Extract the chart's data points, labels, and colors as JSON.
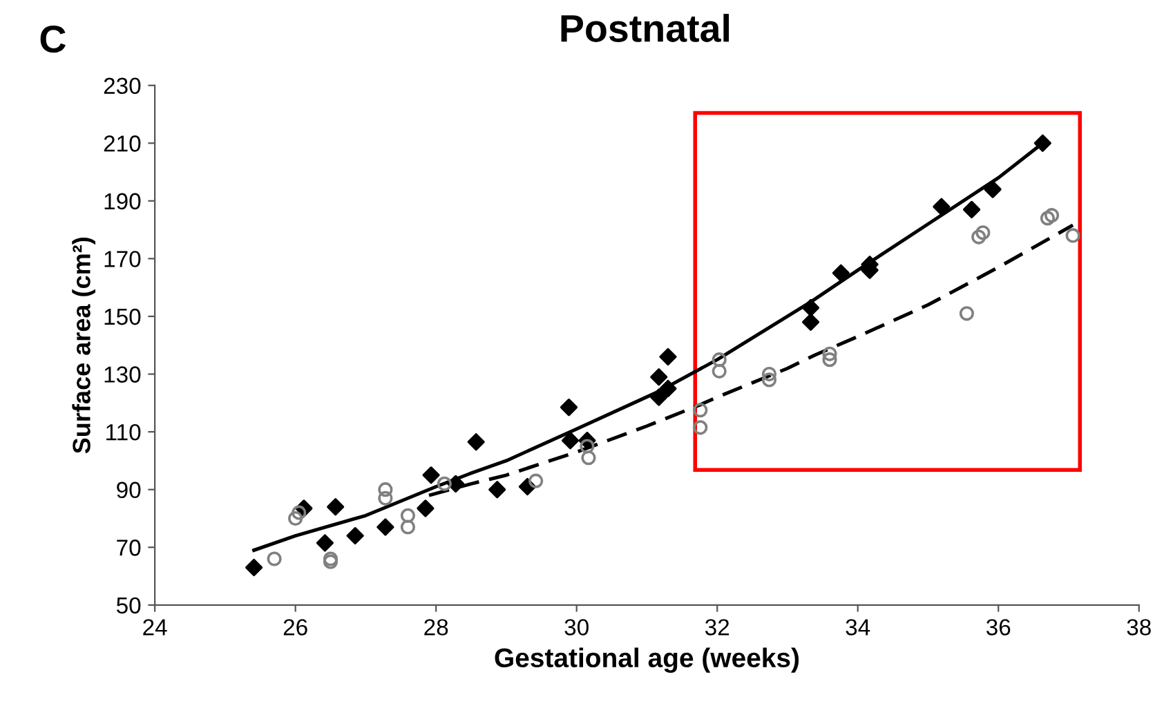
{
  "chart_data": {
    "type": "scatter",
    "title": "Postnatal",
    "xlabel": "Gestational age (weeks)",
    "ylabel": "Surface area (cm²)",
    "annotations": [
      "C"
    ],
    "xlim": [
      24,
      38
    ],
    "xticks": [
      24,
      26,
      28,
      30,
      32,
      34,
      36,
      38
    ],
    "ylim": [
      50,
      230
    ],
    "yticks": [
      50,
      70,
      90,
      110,
      130,
      150,
      170,
      190,
      210,
      230
    ],
    "grid": false,
    "legend": false,
    "series": [
      {
        "marker": "diamond",
        "color": "#000000",
        "x": [
          25.41,
          26.12,
          26.42,
          26.57,
          26.85,
          27.28,
          27.85,
          27.93,
          28.28,
          28.57,
          28.87,
          29.3,
          29.89,
          29.91,
          30.15,
          31.17,
          31.17,
          31.3,
          31.3,
          33.33,
          33.33,
          33.76,
          34.17,
          34.17,
          35.19,
          35.62,
          35.92,
          36.63
        ],
        "values": [
          63,
          83.5,
          71.5,
          84,
          74,
          77,
          83.5,
          95,
          92,
          106.5,
          90,
          91,
          118.5,
          107,
          107,
          129,
          122,
          136,
          125,
          153,
          148,
          165,
          166,
          168,
          188,
          187,
          194,
          210
        ]
      },
      {
        "marker": "circle",
        "color": "#808080",
        "x": [
          25.7,
          26.0,
          26.05,
          26.5,
          26.5,
          27.28,
          27.28,
          27.6,
          27.6,
          28.12,
          29.42,
          30.15,
          30.17,
          31.76,
          31.76,
          32.03,
          32.03,
          32.74,
          32.74,
          33.6,
          33.6,
          35.55,
          35.72,
          35.78,
          36.7,
          36.76,
          37.06
        ],
        "values": [
          66,
          80,
          82,
          66,
          65,
          87,
          90,
          77,
          81,
          92,
          93,
          105,
          101,
          111.5,
          117.5,
          131,
          135,
          128,
          130,
          135,
          137,
          151,
          177.5,
          179,
          184,
          185,
          178
        ]
      },
      {
        "type": "line",
        "line_style": "solid",
        "color": "#000000",
        "x": [
          25.41,
          26,
          27,
          28,
          28.48,
          29,
          30,
          31.17,
          32,
          33.33,
          34,
          35,
          36,
          36.63
        ],
        "values": [
          69,
          74,
          81,
          91,
          95.5,
          100,
          111,
          124,
          135,
          155,
          166,
          182,
          198,
          210
        ]
      },
      {
        "type": "line",
        "line_style": "dashed",
        "color": "#000000",
        "x": [
          27.9,
          28.5,
          29,
          30,
          31,
          31.76,
          32,
          33,
          33.39,
          34,
          35,
          36,
          37.06
        ],
        "values": [
          88,
          92,
          95,
          103,
          112,
          119.4,
          122,
          132,
          136.6,
          143,
          154,
          167,
          181.6
        ]
      }
    ]
  }
}
